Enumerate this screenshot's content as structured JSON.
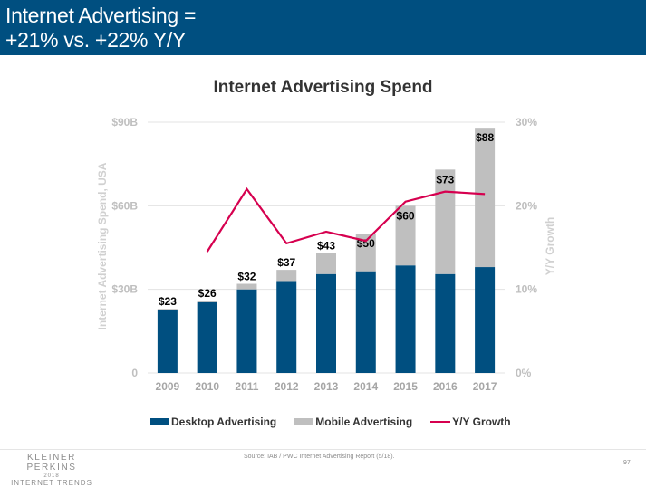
{
  "header": {
    "title_line1": "Internet Advertising =",
    "title_line2": "+21% vs. +22% Y/Y"
  },
  "chart_data": {
    "type": "bar",
    "stacked": true,
    "title": "Internet Advertising Spend",
    "xlabel": "",
    "ylabel": "Internet Advertising Spend, USA",
    "ylabel_right": "Y/Y Growth",
    "categories": [
      "2009",
      "2010",
      "2011",
      "2012",
      "2013",
      "2014",
      "2015",
      "2016",
      "2017"
    ],
    "series": [
      {
        "name": "Desktop Advertising",
        "type": "bar",
        "axis": "left",
        "color": "#004F80",
        "values": [
          22.7,
          25.4,
          30.0,
          33.0,
          35.5,
          36.5,
          38.6,
          35.5,
          38.0
        ]
      },
      {
        "name": "Mobile Advertising",
        "type": "bar",
        "axis": "left",
        "color": "#BFBFBF",
        "values": [
          0.3,
          0.6,
          2.0,
          4.0,
          7.5,
          13.5,
          21.4,
          37.5,
          50.0
        ]
      },
      {
        "name": "Y/Y Growth",
        "type": "line",
        "axis": "right",
        "color": "#D6004F",
        "values": [
          null,
          14.5,
          22.0,
          15.5,
          16.9,
          15.8,
          20.5,
          21.7,
          21.4
        ]
      }
    ],
    "totals_labels": [
      "$23",
      "$26",
      "$32",
      "$37",
      "$43",
      "$50",
      "$60",
      "$73",
      "$88"
    ],
    "totals": [
      23,
      26,
      32,
      37,
      43,
      50,
      60,
      73,
      88
    ],
    "ylim": [
      0,
      90
    ],
    "yticks": [
      0,
      30,
      60,
      90
    ],
    "ytick_labels": [
      "0",
      "$30B",
      "$60B",
      "$90B"
    ],
    "ylim_right": [
      0,
      30
    ],
    "yticks_right": [
      0,
      10,
      20,
      30
    ],
    "ytick_labels_right": [
      "0%",
      "10%",
      "20%",
      "30%"
    ],
    "grid": true,
    "legend_position": "bottom"
  },
  "legend": {
    "desktop": "Desktop Advertising",
    "mobile": "Mobile Advertising",
    "growth": "Y/Y Growth"
  },
  "footer": {
    "logo_line1": "KLEINER PERKINS",
    "logo_line2": "2018",
    "logo_line3": "INTERNET TRENDS",
    "source": "Source: IAB / PWC Internet Advertising Report (5/18).",
    "page_number": "97"
  }
}
